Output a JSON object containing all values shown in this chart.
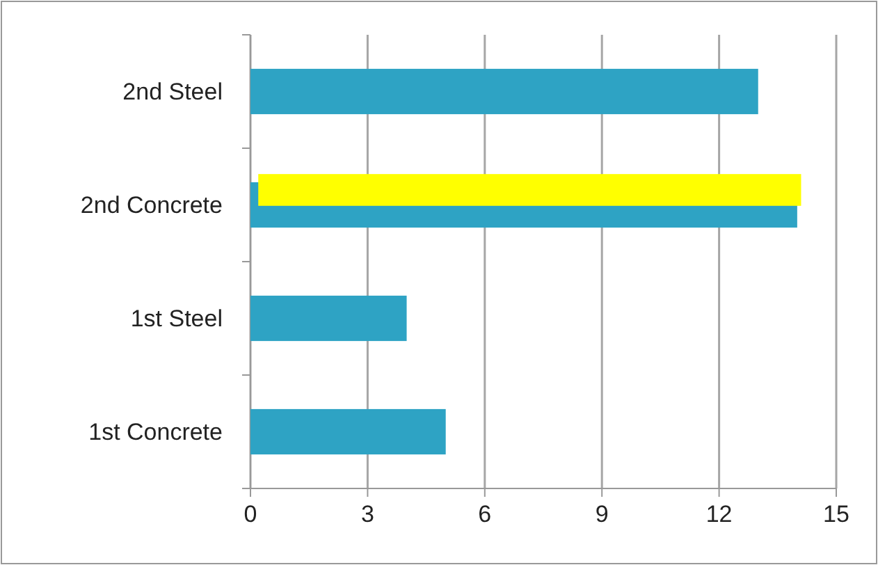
{
  "chart_data": {
    "type": "bar",
    "orientation": "horizontal",
    "categories": [
      "2nd Steel",
      "2nd Concrete",
      "1st Steel",
      "1st Concrete"
    ],
    "series": [
      {
        "color": "#2ea3c4",
        "values": [
          13,
          14,
          4,
          5
        ]
      },
      {
        "color": "#ffff00",
        "base": [
          null,
          0.2,
          null,
          null
        ],
        "values": [
          null,
          13.9,
          null,
          null
        ]
      }
    ],
    "xlim": [
      0,
      15
    ],
    "xticks": [
      0,
      3,
      6,
      9,
      12,
      15
    ],
    "grid": "x"
  }
}
